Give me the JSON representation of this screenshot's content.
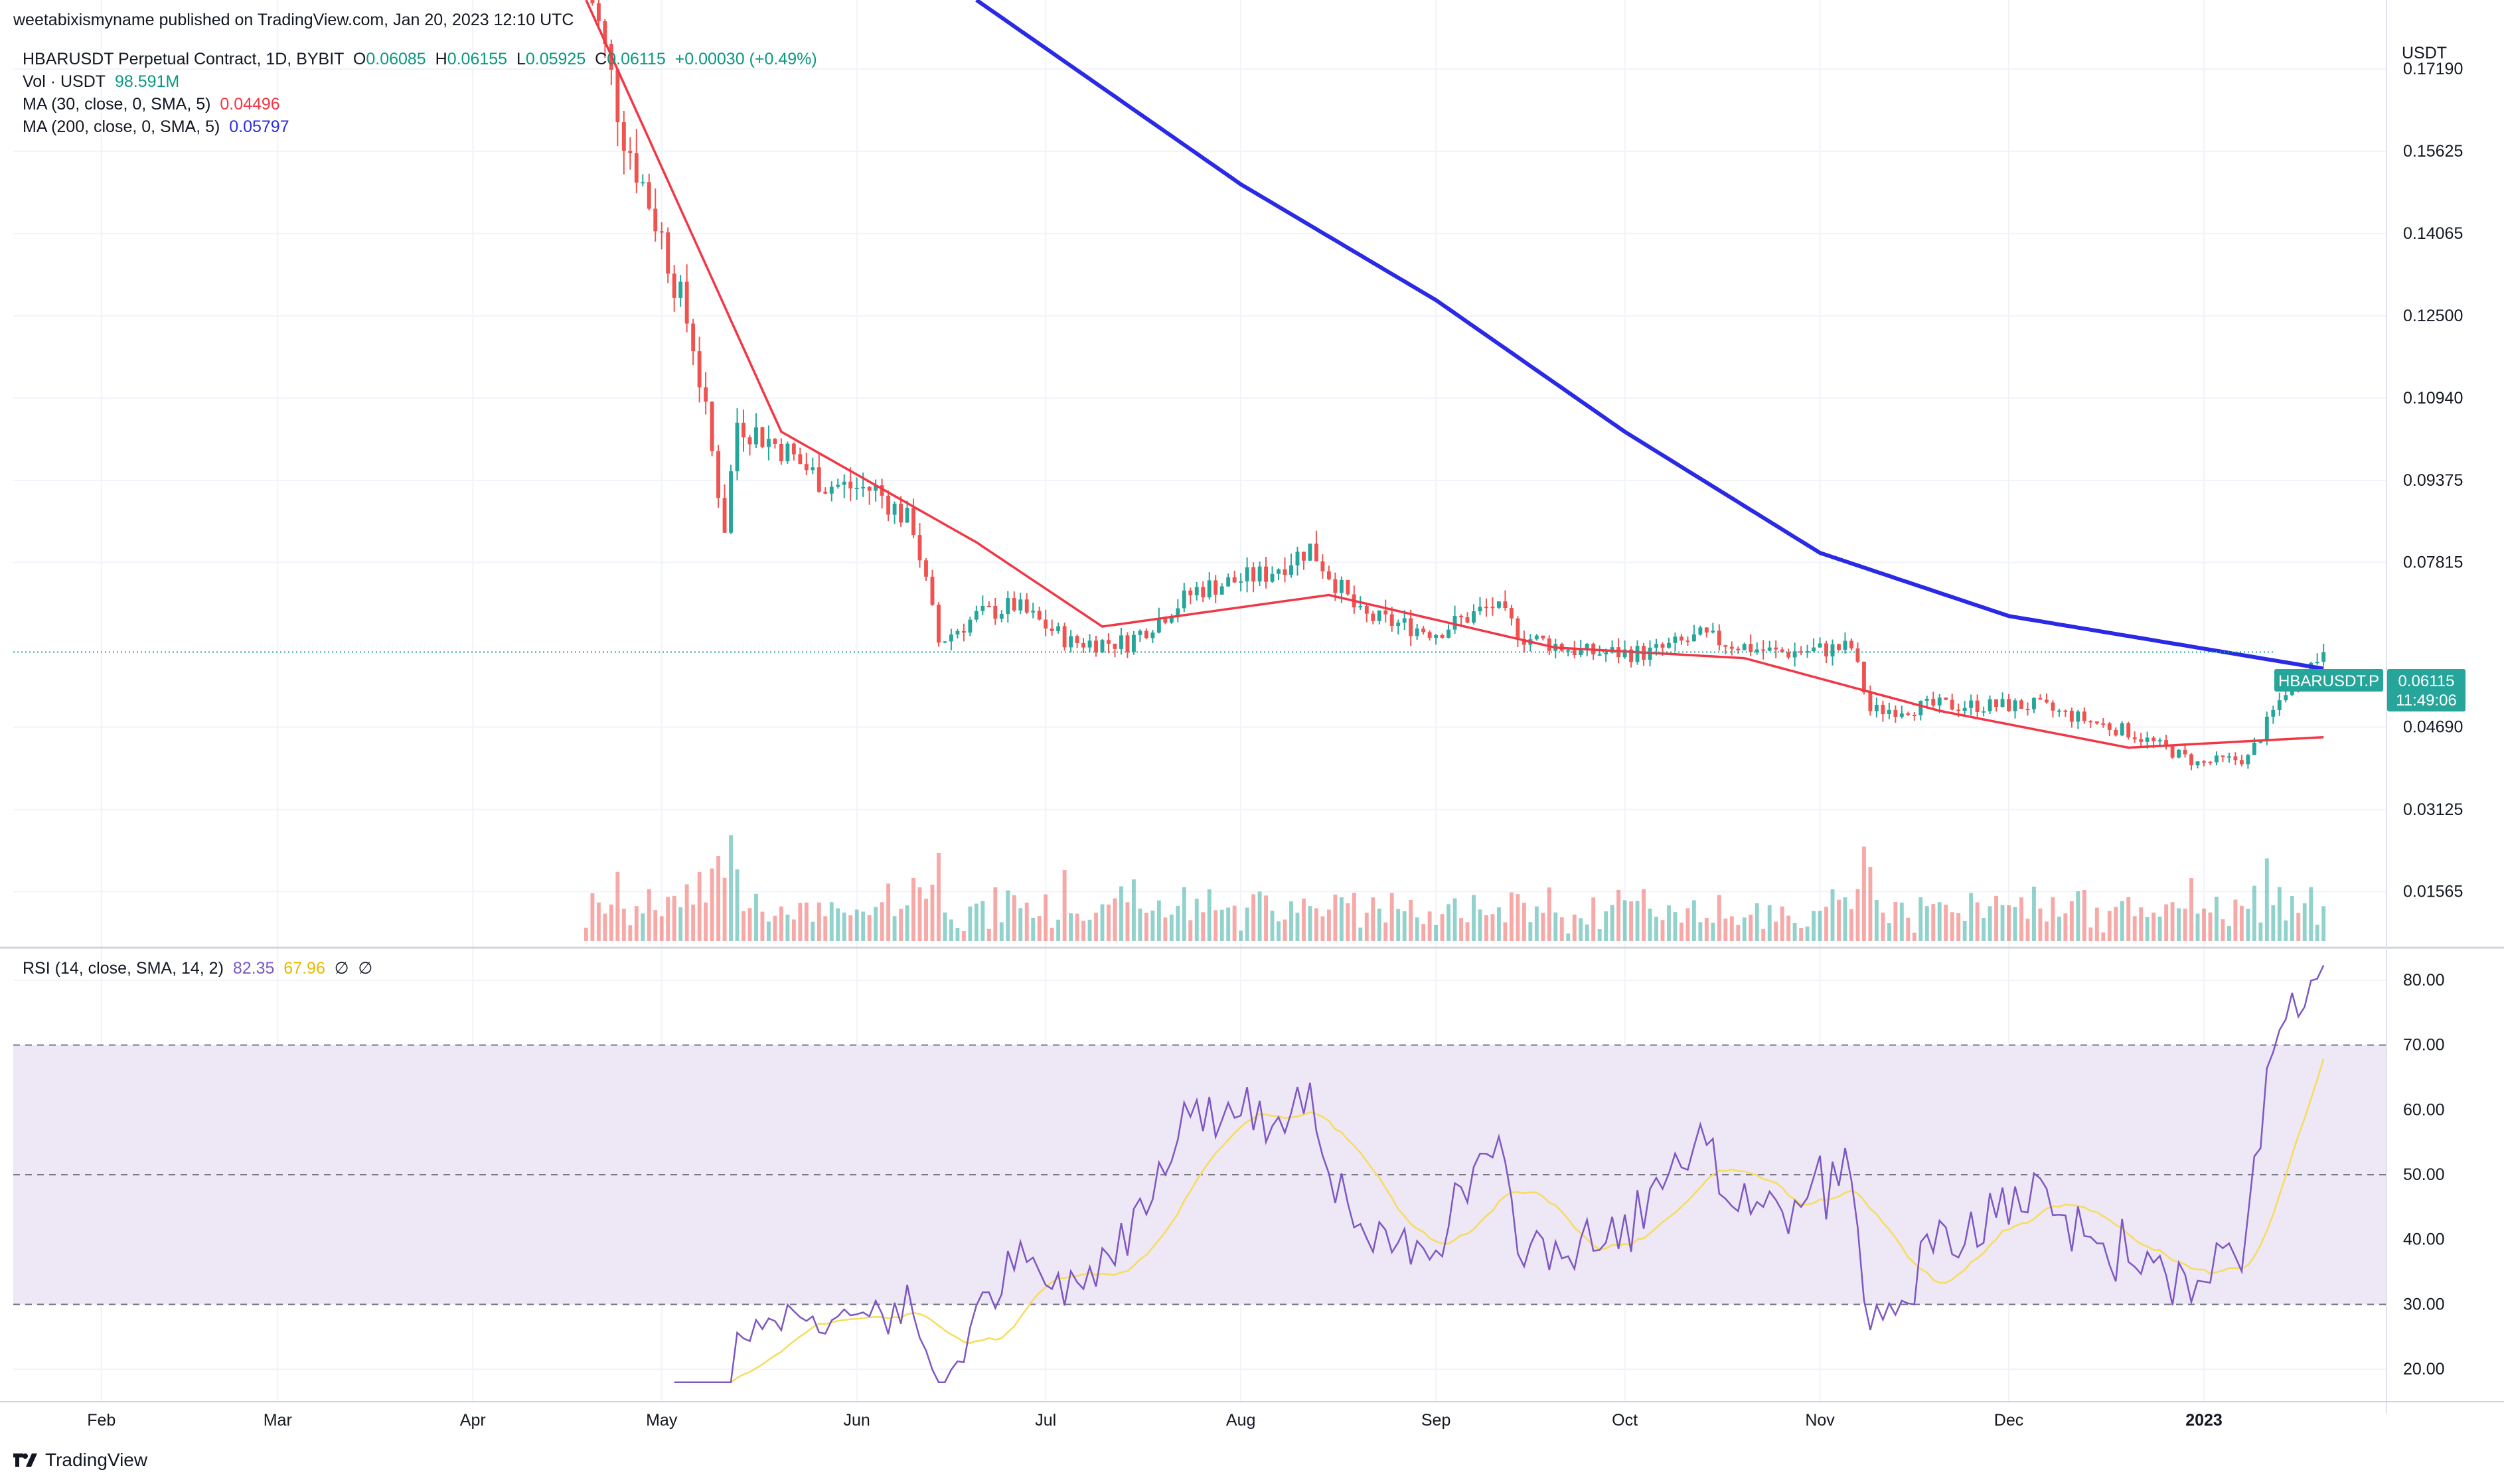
{
  "header": {
    "published": "weetabixismyname published on TradingView.com, Jan 20, 2023 12:10 UTC"
  },
  "legend": {
    "symbol": "HBARUSDT Perpetual Contract, 1D, BYBIT",
    "ohlc": {
      "o_label": "O",
      "o": "0.06085",
      "h_label": "H",
      "h": "0.06155",
      "l_label": "L",
      "l": "0.05925",
      "c_label": "C",
      "c": "0.06115",
      "change": "+0.00030 (+0.49%)"
    },
    "vol_label": "Vol · USDT",
    "vol_value": "98.591M",
    "ma30_label": "MA (30, close, 0, SMA, 5)",
    "ma30_value": "0.04496",
    "ma200_label": "MA (200, close, 0, SMA, 5)",
    "ma200_value": "0.05797",
    "rsi_label": "RSI (14, close, SMA, 14, 2)",
    "rsi_value": "82.35",
    "rsi_ma_value": "67.96",
    "rsi_extra1": "∅",
    "rsi_extra2": "∅"
  },
  "axis": {
    "unit": "USDT",
    "price_ticks": [
      "0.17190",
      "0.15625",
      "0.14065",
      "0.12500",
      "0.10940",
      "0.09375",
      "0.07815",
      "0.06115",
      "0.04690",
      "0.03125",
      "0.01565"
    ],
    "rsi_ticks": [
      "80.00",
      "70.00",
      "60.00",
      "50.00",
      "40.00",
      "30.00",
      "20.00"
    ],
    "months": [
      "Feb",
      "Mar",
      "Apr",
      "May",
      "Jun",
      "Jul",
      "Aug",
      "Sep",
      "Oct",
      "Nov",
      "Dec",
      "2023"
    ]
  },
  "price_tag": {
    "symbol": "HBARUSDT.P",
    "price": "0.06115",
    "countdown": "11:49:06"
  },
  "logo": "TradingView",
  "colors": {
    "up": "#26a69a",
    "down": "#ef5350",
    "ma30": "#f23645",
    "ma200": "#2a2ae6",
    "rsi": "#7e57c2",
    "rsi_ma": "#f7dc5c",
    "rsi_band": "#ede7f6"
  },
  "chart_data": {
    "type": "candlestick",
    "title": "HBARUSDT Perpetual Contract, 1D, BYBIT",
    "price_range": [
      0.005,
      0.185
    ],
    "rsi_range": [
      15,
      85
    ],
    "grid": true,
    "x_range": [
      "2023-01-20 back ~360 days"
    ],
    "ma200_anchor_points": [
      [
        "2022-06-20",
        0.185
      ],
      [
        "2022-08-01",
        0.15
      ],
      [
        "2022-09-01",
        0.128
      ],
      [
        "2022-10-01",
        0.103
      ],
      [
        "2022-11-01",
        0.08
      ],
      [
        "2022-12-01",
        0.068
      ],
      [
        "2023-01-20",
        0.058
      ]
    ],
    "ma30_anchor_points": [
      [
        "2022-04-19",
        0.185
      ],
      [
        "2022-05-20",
        0.103
      ],
      [
        "2022-06-20",
        0.082
      ],
      [
        "2022-07-10",
        0.066
      ],
      [
        "2022-08-15",
        0.072
      ],
      [
        "2022-09-20",
        0.062
      ],
      [
        "2022-10-20",
        0.06
      ],
      [
        "2022-11-20",
        0.05
      ],
      [
        "2022-12-20",
        0.043
      ],
      [
        "2023-01-20",
        0.045
      ]
    ],
    "candle_waypoints": [
      [
        "2022-04-19",
        0.19
      ],
      [
        "2022-04-25",
        0.16
      ],
      [
        "2022-05-01",
        0.14
      ],
      [
        "2022-05-06",
        0.12
      ],
      [
        "2022-05-11",
        0.085
      ],
      [
        "2022-05-13",
        0.105
      ],
      [
        "2022-05-20",
        0.1
      ],
      [
        "2022-05-27",
        0.093
      ],
      [
        "2022-06-04",
        0.092
      ],
      [
        "2022-06-10",
        0.085
      ],
      [
        "2022-06-14",
        0.063
      ],
      [
        "2022-06-20",
        0.068
      ],
      [
        "2022-06-26",
        0.07
      ],
      [
        "2022-07-05",
        0.063
      ],
      [
        "2022-07-14",
        0.063
      ],
      [
        "2022-07-25",
        0.073
      ],
      [
        "2022-08-05",
        0.076
      ],
      [
        "2022-08-12",
        0.081
      ],
      [
        "2022-08-20",
        0.068
      ],
      [
        "2022-09-01",
        0.065
      ],
      [
        "2022-09-10",
        0.07
      ],
      [
        "2022-09-15",
        0.064
      ],
      [
        "2022-09-25",
        0.061
      ],
      [
        "2022-10-05",
        0.061
      ],
      [
        "2022-10-13",
        0.064
      ],
      [
        "2022-10-25",
        0.061
      ],
      [
        "2022-11-06",
        0.062
      ],
      [
        "2022-11-09",
        0.05
      ],
      [
        "2022-11-20",
        0.051
      ],
      [
        "2022-12-05",
        0.051
      ],
      [
        "2022-12-20",
        0.046
      ],
      [
        "2022-12-31",
        0.04
      ],
      [
        "2023-01-08",
        0.041
      ],
      [
        "2023-01-14",
        0.054
      ],
      [
        "2023-01-20",
        0.06115
      ]
    ],
    "rsi_last": 82.35,
    "rsi_ma_last": 67.96,
    "rsi_levels": [
      70,
      50,
      30
    ]
  }
}
